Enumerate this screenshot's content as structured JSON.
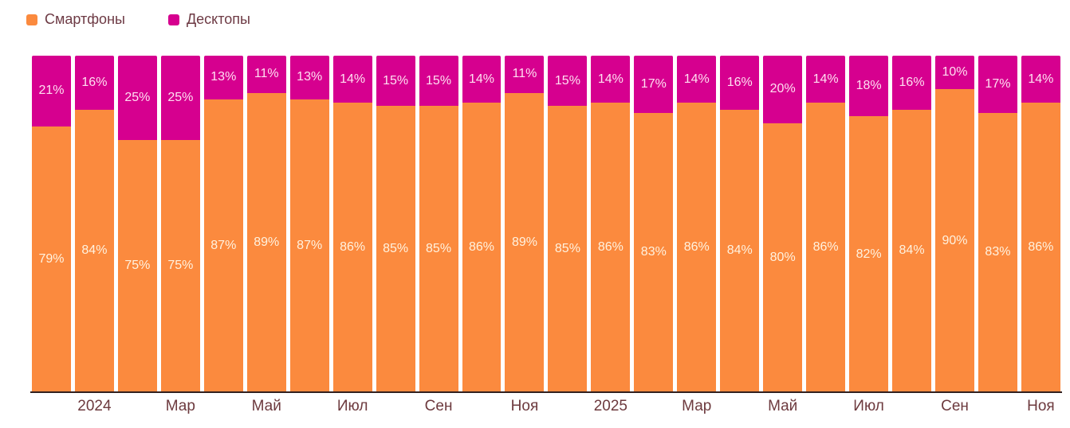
{
  "legend": {
    "items": [
      {
        "label": "Смартфоны",
        "color": "#fb8a3e"
      },
      {
        "label": "Десктопы",
        "color": "#d6008f"
      }
    ]
  },
  "chart_data": {
    "type": "bar",
    "variant": "100-percent-stacked",
    "unit": "%",
    "ylim": [
      0,
      100
    ],
    "grid": false,
    "legend_position": "top-left",
    "x_tick_labels": [
      "2024",
      "Мар",
      "Май",
      "Июл",
      "Сен",
      "Ноя",
      "2025",
      "Мар",
      "Май",
      "Июл",
      "Сен",
      "Ноя"
    ],
    "labeled_bar_indices": [
      1,
      3,
      5,
      7,
      9,
      11,
      13,
      15,
      17,
      19,
      21,
      23
    ],
    "series": [
      {
        "name": "Смартфоны",
        "color": "#fb8a3e",
        "label_color": "#fff2df",
        "values": [
          79,
          84,
          75,
          75,
          87,
          89,
          87,
          86,
          85,
          85,
          86,
          89,
          85,
          86,
          83,
          86,
          84,
          80,
          86,
          82,
          84,
          90,
          83,
          86
        ]
      },
      {
        "name": "Десктопы",
        "color": "#d6008f",
        "label_color": "#ffe0f2",
        "values": [
          21,
          16,
          25,
          25,
          13,
          11,
          13,
          14,
          15,
          15,
          14,
          11,
          15,
          14,
          17,
          14,
          16,
          20,
          14,
          18,
          16,
          10,
          17,
          14
        ]
      }
    ],
    "axis_line_color": "#32201e",
    "axis_label_color": "#6d3a3e"
  }
}
